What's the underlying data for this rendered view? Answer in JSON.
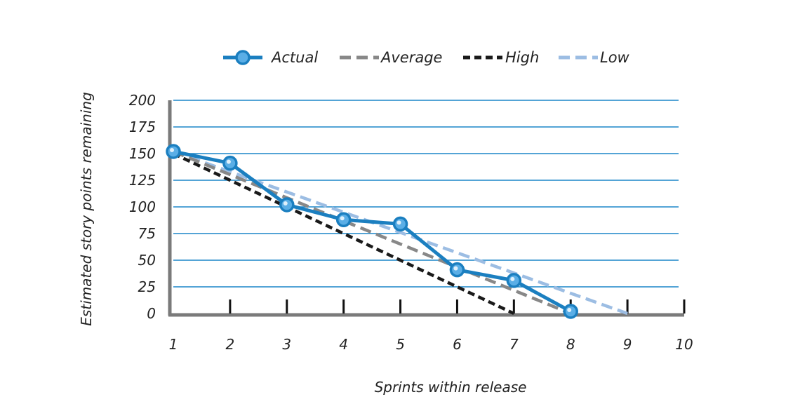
{
  "chart_data": {
    "type": "line",
    "title": "",
    "xlabel": "Sprints within release",
    "ylabel": "Estimated story points remaining",
    "x_ticks": [
      "1",
      "2",
      "3",
      "4",
      "5",
      "6",
      "7",
      "8",
      "9",
      "10"
    ],
    "y_ticks": [
      "0",
      "25",
      "50",
      "75",
      "100",
      "125",
      "150",
      "175",
      "200"
    ],
    "xlim": [
      1,
      10
    ],
    "ylim": [
      0,
      200
    ],
    "grid": "horizontal",
    "legend_position": "top",
    "series": [
      {
        "name": "Actual",
        "style": "solid-markers",
        "color": "#1b7fc0",
        "x": [
          1,
          2,
          3,
          4,
          5,
          6,
          7,
          8
        ],
        "y": [
          152,
          141,
          102,
          88,
          84,
          41,
          31,
          2
        ]
      },
      {
        "name": "Average",
        "style": "dashed",
        "color": "#888888",
        "x": [
          1,
          8
        ],
        "y": [
          152,
          0
        ]
      },
      {
        "name": "High",
        "style": "dashed",
        "color": "#1a1a1a",
        "x": [
          1,
          7
        ],
        "y": [
          150,
          0
        ]
      },
      {
        "name": "Low",
        "style": "dashed",
        "color": "#9cbde3",
        "x": [
          1,
          9
        ],
        "y": [
          152,
          0
        ]
      }
    ]
  }
}
